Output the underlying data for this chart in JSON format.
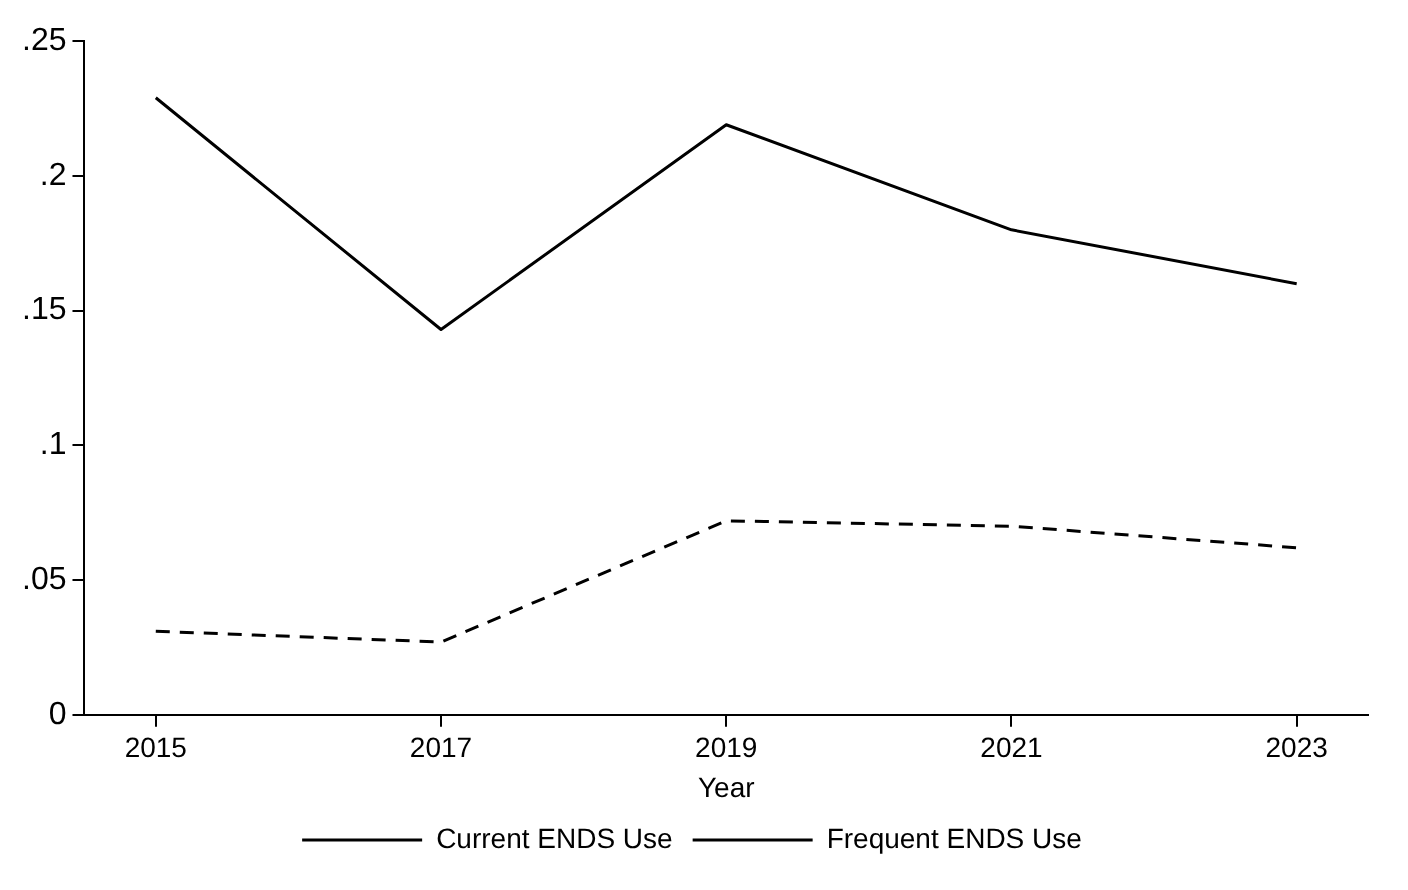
{
  "chart_data": {
    "type": "line",
    "xlabel": "Year",
    "x": [
      2015,
      2017,
      2019,
      2021,
      2023
    ],
    "xlim": [
      2014.5,
      2023.5
    ],
    "xticks": [
      2015,
      2017,
      2019,
      2021,
      2023
    ],
    "ylim": [
      0,
      0.25
    ],
    "yticks": [
      0,
      {
        "value": 0.05,
        "label": ".05"
      },
      {
        "value": 0.1,
        "label": ".1"
      },
      {
        "value": 0.15,
        "label": ".15"
      },
      {
        "value": 0.2,
        "label": ".2"
      },
      {
        "value": 0.25,
        "label": ".25"
      }
    ],
    "grid": false,
    "legend": "bottom",
    "marker": "none",
    "series": [
      {
        "name": "Current ENDS Use",
        "color": "#000000",
        "line_style": "solid",
        "values": [
          0.229,
          0.143,
          0.219,
          0.18,
          0.16
        ]
      },
      {
        "name": "Frequent ENDS Use",
        "color": "#000000",
        "line_style": "dashed",
        "values": [
          0.031,
          0.027,
          0.072,
          0.07,
          0.062
        ]
      }
    ]
  }
}
